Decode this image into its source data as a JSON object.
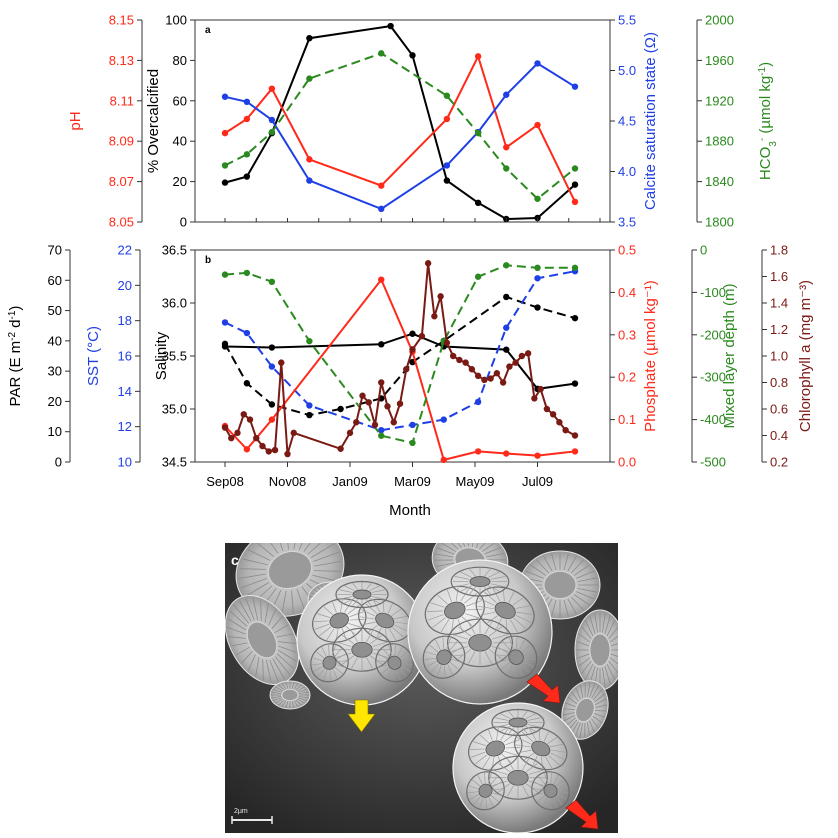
{
  "figure": {
    "x_axis": {
      "label": "Month",
      "tick_labels": [
        "Sep08",
        "Nov08",
        "Jan09",
        "Mar09",
        "May09",
        "Jul09"
      ],
      "tick_values": [
        0,
        2,
        4,
        6,
        8,
        10
      ],
      "range": [
        0,
        12
      ]
    },
    "colors": {
      "black": "#000000",
      "red": "#ff2a1a",
      "blue": "#1f3fe6",
      "green": "#2b8a1f",
      "darkred": "#7a1a14"
    }
  },
  "chart_data": [
    {
      "type": "line",
      "panel_label": "a",
      "axes": [
        {
          "id": "pct",
          "label": "% Overcalcified",
          "range": [
            0,
            100
          ],
          "ticks": [
            "0",
            "20",
            "40",
            "60",
            "80",
            "100"
          ],
          "color": "#000000"
        },
        {
          "id": "ph",
          "label": "pH",
          "range": [
            8.05,
            8.15
          ],
          "ticks": [
            "8.05",
            "8.07",
            "8.09",
            "8.11",
            "8.13",
            "8.15"
          ],
          "color": "#ff2a1a"
        },
        {
          "id": "omega",
          "label": "Calcite saturation state (Ω)",
          "range": [
            3.5,
            5.5
          ],
          "ticks": [
            "3.5",
            "4.0",
            "4.5",
            "5.0",
            "5.5"
          ],
          "color": "#1f3fe6"
        },
        {
          "id": "hco3",
          "label_main": "HCO",
          "label_sub": "3",
          "label_sup": "-",
          "label_rest": " (µmol kg",
          "label_sup2": "-1",
          "label_end": ")",
          "range": [
            1800,
            2000
          ],
          "ticks": [
            "1800",
            "1840",
            "1880",
            "1920",
            "1960",
            "2000"
          ],
          "color": "#2b8a1f"
        }
      ],
      "series": [
        {
          "name": "% Overcalcified",
          "axis": "pct",
          "color": "#000000",
          "dash": false,
          "x": [
            0,
            0.7,
            1.5,
            2.7,
            5.3,
            6,
            7.1,
            8.1,
            9,
            10,
            11.2
          ],
          "y": [
            19.5,
            22.5,
            44,
            91,
            97,
            82.5,
            20.5,
            9.5,
            1.5,
            2,
            18.5
          ]
        },
        {
          "name": "pH",
          "axis": "ph",
          "color": "#ff2a1a",
          "dash": false,
          "x": [
            0,
            0.7,
            1.5,
            2.7,
            5,
            7.1,
            8.1,
            9,
            10,
            11.2
          ],
          "y": [
            8.094,
            8.101,
            8.116,
            8.081,
            8.068,
            8.101,
            8.132,
            8.087,
            8.098,
            8.06
          ]
        },
        {
          "name": "Calcite saturation state",
          "axis": "omega",
          "color": "#1f3fe6",
          "dash": false,
          "x": [
            0,
            0.7,
            1.5,
            2.7,
            5,
            7.1,
            8.1,
            9,
            10,
            11.2
          ],
          "y": [
            4.74,
            4.69,
            4.51,
            3.91,
            3.63,
            4.06,
            4.39,
            4.76,
            5.07,
            4.84
          ]
        },
        {
          "name": "HCO3-",
          "axis": "hco3",
          "color": "#2b8a1f",
          "dash": true,
          "x": [
            0,
            0.7,
            1.5,
            2.7,
            5,
            7.1,
            8.1,
            9,
            10,
            11.2
          ],
          "y": [
            1856,
            1867,
            1889,
            1942,
            1967,
            1925,
            1888,
            1853,
            1823,
            1853
          ]
        }
      ]
    },
    {
      "type": "line",
      "panel_label": "b",
      "axes": [
        {
          "id": "par",
          "label_main": "PAR (E m",
          "label_sup": "-2",
          "label_mid": " d",
          "label_sup2": "-1",
          "label_end": ")",
          "range": [
            0,
            70
          ],
          "ticks": [
            "0",
            "10",
            "20",
            "30",
            "40",
            "50",
            "60",
            "70"
          ],
          "color": "#000000"
        },
        {
          "id": "sst",
          "label": "SST (°C)",
          "range": [
            10,
            22
          ],
          "ticks": [
            "10",
            "12",
            "14",
            "16",
            "18",
            "20",
            "22"
          ],
          "color": "#1f3fe6"
        },
        {
          "id": "sal",
          "label": "Salinity",
          "range": [
            34.5,
            36.5
          ],
          "ticks": [
            "34.5",
            "35.0",
            "35.5",
            "36.0",
            "36.5"
          ],
          "color": "#000000"
        },
        {
          "id": "phos",
          "label": "Phosphate (µmol kg⁻¹)",
          "range": [
            0,
            0.5
          ],
          "ticks": [
            "0.0",
            "0.1",
            "0.2",
            "0.3",
            "0.4",
            "0.5"
          ],
          "color": "#ff2a1a"
        },
        {
          "id": "mld",
          "label": "Mixed layer depth (m)",
          "range": [
            -500,
            0
          ],
          "ticks": [
            "-500",
            "-400",
            "-300",
            "-200",
            "-100",
            "0"
          ],
          "color": "#2b8a1f"
        },
        {
          "id": "chl",
          "label": "Chlorophyll a (mg m⁻³)",
          "range": [
            0.2,
            1.8
          ],
          "ticks": [
            "0.2",
            "0.4",
            "0.6",
            "0.8",
            "1.0",
            "1.2",
            "1.4",
            "1.6",
            "1.8"
          ],
          "color": "#7a1a14"
        }
      ],
      "series": [
        {
          "name": "Salinity",
          "axis": "sal",
          "color": "#000000",
          "dash": false,
          "x": [
            0,
            1.5,
            5,
            6,
            7,
            9,
            10,
            11.2
          ],
          "y": [
            35.59,
            35.58,
            35.61,
            35.71,
            35.59,
            35.56,
            35.19,
            35.24
          ]
        },
        {
          "name": "PAR",
          "axis": "par",
          "color": "#000000",
          "dash": true,
          "x": [
            0,
            0.7,
            1.5,
            2.7,
            3.7,
            5,
            6,
            7,
            9,
            10,
            11.2
          ],
          "y": [
            39,
            26,
            19,
            15.5,
            17.5,
            21,
            33,
            40,
            54.5,
            51,
            47.5
          ]
        },
        {
          "name": "SST",
          "axis": "sst",
          "color": "#1f3fe6",
          "dash": true,
          "x": [
            0,
            0.7,
            1.5,
            2.7,
            5,
            6,
            7,
            8.1,
            9,
            10,
            11.2
          ],
          "y": [
            17.9,
            17.3,
            15.4,
            13.2,
            11.8,
            12.1,
            12.4,
            13.4,
            17.6,
            20.4,
            20.8
          ]
        },
        {
          "name": "Phosphate",
          "axis": "phos",
          "color": "#ff2a1a",
          "dash": false,
          "x": [
            0,
            0.7,
            1.5,
            5,
            6,
            7,
            8.1,
            9,
            10,
            11.2
          ],
          "y": [
            0.085,
            0.03,
            0.1,
            0.43,
            0.26,
            0.005,
            0.025,
            0.02,
            0.015,
            0.025
          ]
        },
        {
          "name": "Mixed layer depth",
          "axis": "mld",
          "color": "#2b8a1f",
          "dash": true,
          "x": [
            0,
            0.7,
            1.5,
            2.7,
            5,
            6,
            7,
            8.1,
            9,
            10,
            11.2
          ],
          "y": [
            -58,
            -54,
            -75,
            -215,
            -438,
            -455,
            -215,
            -63,
            -36,
            -42,
            -42
          ]
        },
        {
          "name": "Chlorophyll a",
          "axis": "chl",
          "color": "#7a1a14",
          "dash": false,
          "x": [
            0,
            0.2,
            0.4,
            0.6,
            0.8,
            1.0,
            1.2,
            1.4,
            1.6,
            1.8,
            2.0,
            2.2,
            3.7,
            4.0,
            4.2,
            4.4,
            4.6,
            4.8,
            5.0,
            5.2,
            5.4,
            5.6,
            5.8,
            6.0,
            6.3,
            6.5,
            6.7,
            6.9,
            7.1,
            7.3,
            7.5,
            7.7,
            7.9,
            8.1,
            8.3,
            8.5,
            8.7,
            8.9,
            9.1,
            9.3,
            9.5,
            9.7,
            9.9,
            10.1,
            10.3,
            10.5,
            10.7,
            10.9,
            11.2
          ],
          "y": [
            0.46,
            0.38,
            0.42,
            0.56,
            0.52,
            0.38,
            0.32,
            0.28,
            0.29,
            0.95,
            0.26,
            0.42,
            0.3,
            0.42,
            0.5,
            0.7,
            0.65,
            0.48,
            0.8,
            0.62,
            0.5,
            0.64,
            0.9,
            1.05,
            1.15,
            1.7,
            1.3,
            1.45,
            1.1,
            1.0,
            0.97,
            0.95,
            0.9,
            0.85,
            0.82,
            0.83,
            0.87,
            0.8,
            0.92,
            0.95,
            1.0,
            1.02,
            0.68,
            0.75,
            0.6,
            0.56,
            0.5,
            0.44,
            0.4
          ]
        }
      ]
    }
  ],
  "micrograph": {
    "panel_label": "c",
    "scale_bar_text": "2μm"
  }
}
